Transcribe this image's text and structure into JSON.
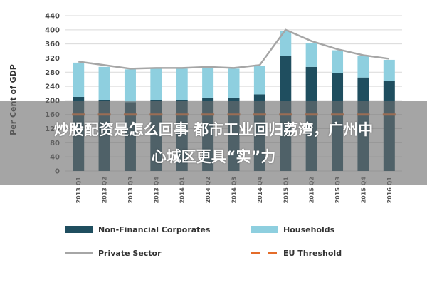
{
  "overlay": {
    "line1": "炒股配资是怎么回事 都市工业回归荔湾，广州中",
    "line2": "心城区更具“实”力"
  },
  "colors": {
    "non_financial": "#1f4e5f",
    "households": "#8ecfdf",
    "private_sector": "#a6a6a6",
    "eu_threshold": "#e46c2a",
    "grid": "#d9d9d9"
  },
  "chart_data": {
    "type": "bar",
    "title": "",
    "xlabel": "",
    "ylabel": "Per Cent of GDP",
    "ylim": [
      0,
      440
    ],
    "yticks": [
      0,
      40,
      80,
      120,
      160,
      200,
      240,
      280,
      320,
      360,
      400,
      440
    ],
    "grid": true,
    "legend_position": "bottom",
    "categories": [
      "2013 Q1",
      "2013 Q2",
      "2013 Q3",
      "2013 Q4",
      "2014 Q1",
      "2014 Q2",
      "2014 Q3",
      "2014 Q4",
      "2015 Q1",
      "2015 Q2",
      "2015 Q3",
      "2015 Q4",
      "2016 Q1"
    ],
    "series": [
      {
        "name": "Non-Financial Corporates",
        "kind": "stacked-bar",
        "values": [
          210,
          200,
          195,
          200,
          200,
          208,
          208,
          217,
          325,
          295,
          277,
          265,
          255
        ]
      },
      {
        "name": "Households",
        "kind": "stacked-bar",
        "values": [
          97,
          95,
          93,
          90,
          90,
          86,
          82,
          80,
          72,
          68,
          65,
          60,
          60
        ]
      },
      {
        "name": "Private Sector",
        "kind": "line",
        "values": [
          310,
          300,
          290,
          292,
          292,
          295,
          292,
          300,
          400,
          368,
          345,
          328,
          318
        ]
      },
      {
        "name": "EU Threshold",
        "kind": "dashed-line",
        "values": [
          160,
          160,
          160,
          160,
          160,
          160,
          160,
          160,
          160,
          160,
          160,
          160,
          160
        ]
      }
    ]
  }
}
